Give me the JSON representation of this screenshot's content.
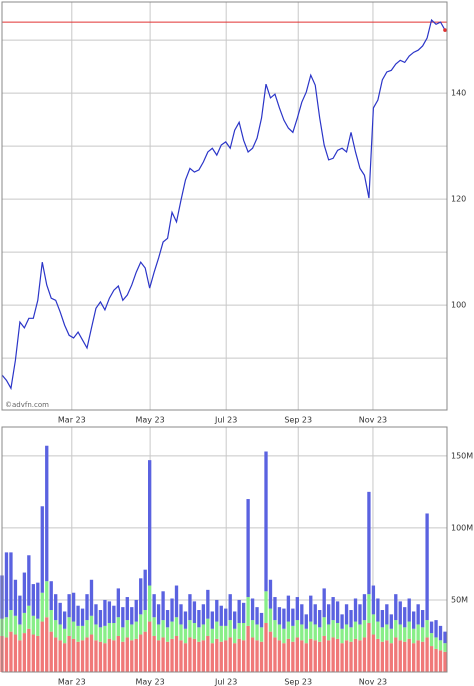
{
  "chart_data": [
    {
      "type": "line",
      "x": [
        0,
        1,
        2,
        3,
        4,
        5,
        6,
        7,
        8,
        9,
        10,
        11,
        12,
        13,
        14,
        15,
        16,
        17,
        18,
        19,
        20,
        21,
        22,
        23,
        24,
        25,
        26,
        27,
        28,
        29,
        30,
        31,
        32,
        33,
        34,
        35,
        36,
        37,
        38,
        39,
        40,
        41,
        42,
        43,
        44,
        45,
        46,
        47,
        48,
        49,
        50,
        51,
        52,
        53,
        54,
        55,
        56,
        57,
        58,
        59,
        60,
        61,
        62,
        63,
        64,
        65,
        66,
        67,
        68,
        69,
        70,
        71,
        72,
        73,
        74,
        75,
        76,
        77,
        78,
        79,
        80,
        81,
        82,
        83,
        84,
        85,
        86,
        87,
        88,
        89,
        90,
        91,
        92,
        93,
        94,
        95,
        96,
        97,
        98,
        99
      ],
      "values": [
        86.8,
        85.8,
        84.3,
        89.6,
        96.8,
        95.7,
        97.5,
        97.5,
        100.9,
        108.1,
        103.8,
        101.3,
        100.9,
        98.7,
        96.2,
        94.3,
        93.8,
        94.9,
        93.4,
        91.9,
        95.7,
        99.4,
        100.6,
        99.1,
        101.3,
        102.8,
        103.6,
        100.9,
        101.9,
        103.8,
        106.2,
        108.1,
        107,
        103.2,
        106.2,
        108.9,
        111.9,
        112.6,
        117.5,
        115.7,
        119.8,
        123.6,
        125.8,
        125.1,
        125.5,
        127,
        128.9,
        129.6,
        128.3,
        130.2,
        130.8,
        129.6,
        133,
        134.5,
        131.1,
        128.9,
        129.6,
        131.5,
        135.3,
        141.7,
        139.1,
        139.8,
        137.2,
        134.9,
        133.4,
        132.6,
        135.3,
        138.3,
        140.2,
        143.4,
        141.5,
        135.3,
        130.2,
        127.4,
        127.7,
        129.2,
        129.6,
        128.9,
        132.6,
        128.9,
        125.8,
        124.5,
        120.2,
        137.2,
        138.7,
        142.5,
        144,
        144.3,
        145.5,
        146.2,
        145.8,
        147,
        147.7,
        148.1,
        148.9,
        150.4,
        153.8,
        153,
        153.4,
        151.9
      ],
      "color": "#2b35c8",
      "xlim": [
        0,
        99
      ],
      "xticks": [
        {
          "value": 15.6,
          "label": "Mar 23"
        },
        {
          "value": 33.1,
          "label": "May 23"
        },
        {
          "value": 50.1,
          "label": "Jul 23"
        },
        {
          "value": 66.2,
          "label": "Sep 23"
        },
        {
          "value": 82.9,
          "label": "Nov 23"
        }
      ],
      "ylim": [
        80.2,
        157.2
      ],
      "yticks": [
        100,
        120,
        140
      ],
      "minor_yticks": [
        90,
        110,
        130,
        150
      ],
      "reference_line": 153.4,
      "reference_color": "#e03030",
      "watermark": "©advfn.com",
      "grid": true
    },
    {
      "type": "stacked_bar",
      "x": [
        0,
        1,
        2,
        3,
        4,
        5,
        6,
        7,
        8,
        9,
        10,
        11,
        12,
        13,
        14,
        15,
        16,
        17,
        18,
        19,
        20,
        21,
        22,
        23,
        24,
        25,
        26,
        27,
        28,
        29,
        30,
        31,
        32,
        33,
        34,
        35,
        36,
        37,
        38,
        39,
        40,
        41,
        42,
        43,
        44,
        45,
        46,
        47,
        48,
        49,
        50,
        51,
        52,
        53,
        54,
        55,
        56,
        57,
        58,
        59,
        60,
        61,
        62,
        63,
        64,
        65,
        66,
        67,
        68,
        69,
        70,
        71,
        72,
        73,
        74,
        75,
        76,
        77,
        78,
        79,
        80,
        81,
        82,
        83,
        84,
        85,
        86,
        87,
        88,
        89,
        90,
        91,
        92,
        93,
        94,
        95,
        96,
        97,
        98,
        99
      ],
      "series": [
        {
          "color": "#f07878",
          "values": [
            25,
            24,
            28,
            26,
            22,
            27,
            30,
            26,
            25,
            35,
            38,
            28,
            24,
            22,
            20,
            25,
            23,
            21,
            22,
            24,
            26,
            22,
            21,
            20,
            23,
            22,
            25,
            21,
            24,
            22,
            23,
            26,
            28,
            35,
            25,
            22,
            24,
            21,
            23,
            25,
            22,
            20,
            24,
            23,
            21,
            22,
            25,
            20,
            23,
            21,
            22,
            24,
            20,
            23,
            22,
            32,
            24,
            22,
            21,
            34,
            28,
            24,
            22,
            20,
            23,
            21,
            24,
            22,
            20,
            23,
            22,
            21,
            25,
            22,
            24,
            23,
            20,
            22,
            21,
            23,
            22,
            24,
            34,
            26,
            23,
            21,
            22,
            20,
            24,
            22,
            21,
            23,
            20,
            22,
            21,
            24,
            18,
            16,
            15,
            14
          ]
        },
        {
          "color": "#88ee88",
          "values": [
            12,
            14,
            15,
            13,
            11,
            14,
            16,
            13,
            12,
            20,
            25,
            15,
            12,
            11,
            10,
            13,
            12,
            11,
            10,
            12,
            13,
            11,
            10,
            12,
            11,
            12,
            13,
            10,
            12,
            11,
            12,
            14,
            15,
            25,
            13,
            11,
            12,
            10,
            12,
            13,
            11,
            10,
            12,
            11,
            10,
            11,
            12,
            10,
            12,
            11,
            10,
            12,
            10,
            11,
            12,
            20,
            12,
            11,
            10,
            22,
            16,
            12,
            11,
            10,
            12,
            11,
            12,
            11,
            10,
            12,
            11,
            10,
            13,
            11,
            12,
            11,
            10,
            11,
            10,
            12,
            11,
            12,
            20,
            14,
            12,
            10,
            11,
            10,
            12,
            11,
            10,
            12,
            10,
            11,
            10,
            12,
            9,
            8,
            7,
            6
          ]
        },
        {
          "color": "#5a62e0",
          "values": [
            30,
            45,
            40,
            25,
            20,
            28,
            35,
            22,
            25,
            60,
            94,
            20,
            18,
            15,
            12,
            16,
            20,
            14,
            12,
            18,
            25,
            14,
            12,
            18,
            15,
            12,
            20,
            14,
            16,
            12,
            15,
            25,
            28,
            87,
            16,
            14,
            20,
            12,
            16,
            22,
            14,
            12,
            18,
            15,
            12,
            14,
            20,
            12,
            15,
            14,
            12,
            18,
            12,
            16,
            14,
            68,
            15,
            12,
            10,
            97,
            20,
            16,
            12,
            14,
            18,
            12,
            16,
            14,
            10,
            18,
            14,
            12,
            20,
            14,
            16,
            15,
            10,
            14,
            12,
            16,
            14,
            18,
            71,
            20,
            16,
            12,
            14,
            10,
            18,
            16,
            14,
            16,
            12,
            14,
            12,
            74,
            8,
            12,
            10,
            8
          ]
        }
      ],
      "xlim": [
        0,
        99
      ],
      "xticks": [
        {
          "value": 15.6,
          "label": "Mar 23"
        },
        {
          "value": 33.1,
          "label": "May 23"
        },
        {
          "value": 50.1,
          "label": "Jul 23"
        },
        {
          "value": 66.2,
          "label": "Sep 23"
        },
        {
          "value": 82.9,
          "label": "Nov 23"
        }
      ],
      "ylim": [
        0,
        170
      ],
      "yticks": [
        {
          "value": 50,
          "label": "50M"
        },
        {
          "value": 100,
          "label": "100M"
        },
        {
          "value": 150,
          "label": "150M"
        }
      ],
      "grid": true
    }
  ]
}
